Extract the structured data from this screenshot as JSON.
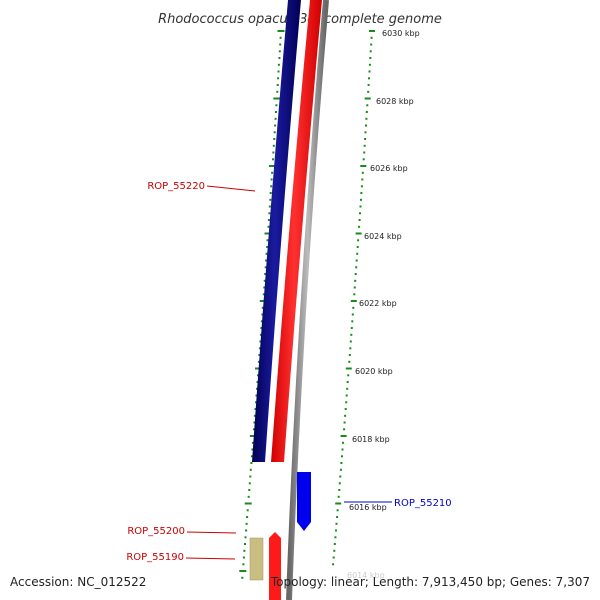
{
  "title": "Rhodococcus opacus B4, complete genome",
  "accession": "Accession: NC_012522",
  "topology": "Topology: linear; Length: 7,913,450 bp; Genes: 7,307",
  "scale": {
    "unit": "kbp",
    "labels": [
      "6030 kbp",
      "6028 kbp",
      "6026 kbp",
      "6024 kbp",
      "6022 kbp",
      "6020 kbp",
      "6018 kbp",
      "6016 kbp",
      "6014 kbp"
    ]
  },
  "genes": [
    {
      "name": "ROP_55220",
      "color": "#cc0000"
    },
    {
      "name": "ROP_55210",
      "color": "#0000cc"
    },
    {
      "name": "ROP_55200",
      "color": "#cc0000"
    },
    {
      "name": "ROP_55190",
      "color": "#cc0000"
    }
  ],
  "tracks": {
    "gene_track_color": "#000080",
    "cds_track_color": "#ff0000",
    "genome_line_color": "#888888",
    "tick_color": "#1a8a1a",
    "forward_gene_color": "#0000ff",
    "small_gene_color": "#c8be82"
  }
}
